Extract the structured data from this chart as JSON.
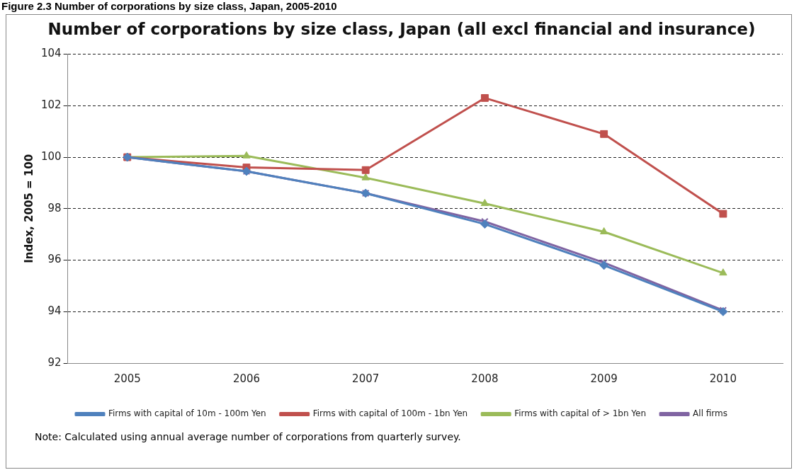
{
  "chart_data": {
    "type": "line",
    "title": "Number of corporations by size class, Japan (all excl financial and insurance)",
    "ylabel": "Index, 2005 = 100",
    "categories": [
      "2005",
      "2006",
      "2007",
      "2008",
      "2009",
      "2010"
    ],
    "series": [
      {
        "name": "Firms with capital of 10m - 100m Yen",
        "color": "#4f81bd",
        "marker": "diamond",
        "values": [
          100,
          99.45,
          98.6,
          97.4,
          95.8,
          94.0
        ]
      },
      {
        "name": "Firms with capital of 100m - 1bn Yen",
        "color": "#c0504d",
        "marker": "square",
        "values": [
          100,
          99.6,
          99.5,
          102.3,
          100.9,
          97.8
        ]
      },
      {
        "name": "Firms with capital of > 1bn Yen",
        "color": "#9bbb59",
        "marker": "triangle",
        "values": [
          100,
          100.05,
          99.2,
          98.2,
          97.1,
          95.5
        ]
      },
      {
        "name": "All firms",
        "color": "#8064a2",
        "marker": "cross",
        "values": [
          100,
          99.45,
          98.6,
          97.5,
          95.9,
          94.05
        ]
      }
    ],
    "ylim": [
      92,
      104
    ],
    "yticks": [
      92,
      94,
      96,
      98,
      100,
      102,
      104
    ],
    "grid": "y",
    "legend": "bottom",
    "line_style": "solid",
    "annotations": [
      "Figure 2.3 Number of corporations by size class, Japan, 2005-2010",
      "Note:  Calculated using annual average number of corporations from quarterly survey."
    ]
  }
}
